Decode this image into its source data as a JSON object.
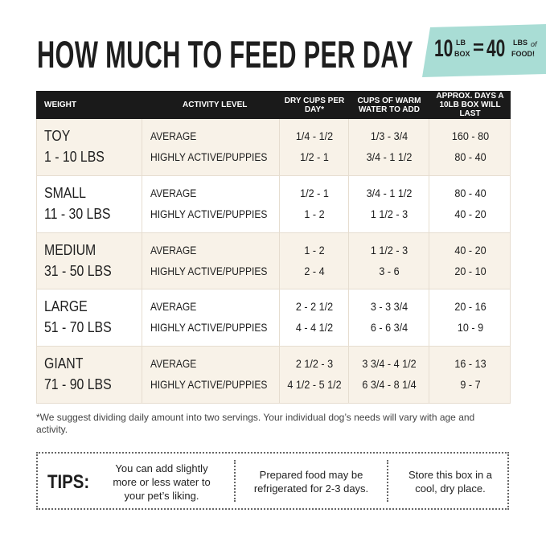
{
  "header": {
    "title": "HOW MUCH TO FEED PER DAY",
    "badge": {
      "left_number": "10",
      "left_unit": "LB",
      "left_item": "BOX",
      "equals": "=",
      "right_number": "40",
      "right_unit": "LBS",
      "right_of": "of",
      "right_item": "FOOD!"
    }
  },
  "table": {
    "columns": [
      "WEIGHT",
      "ACTIVITY LEVEL",
      "DRY CUPS PER DAY*",
      "CUPS OF WARM WATER TO ADD",
      "APPROX. DAYS A 10LB BOX WILL LAST"
    ],
    "rows": [
      {
        "size": "TOY",
        "weight": "1 - 10 LBS",
        "levels": [
          "AVERAGE",
          "HIGHLY ACTIVE/PUPPIES"
        ],
        "dry": [
          "1/4 - 1/2",
          "1/2 - 1"
        ],
        "water": [
          "1/3 - 3/4",
          "3/4 - 1 1/2"
        ],
        "days": [
          "160 - 80",
          "80 - 40"
        ]
      },
      {
        "size": "SMALL",
        "weight": "11 - 30 LBS",
        "levels": [
          "AVERAGE",
          "HIGHLY ACTIVE/PUPPIES"
        ],
        "dry": [
          "1/2 - 1",
          "1 - 2"
        ],
        "water": [
          "3/4 - 1 1/2",
          "1 1/2 - 3"
        ],
        "days": [
          "80 - 40",
          "40 - 20"
        ]
      },
      {
        "size": "MEDIUM",
        "weight": "31 - 50 LBS",
        "levels": [
          "AVERAGE",
          "HIGHLY ACTIVE/PUPPIES"
        ],
        "dry": [
          "1 - 2",
          "2 - 4"
        ],
        "water": [
          "1 1/2 - 3",
          "3 - 6"
        ],
        "days": [
          "40 - 20",
          "20 - 10"
        ]
      },
      {
        "size": "LARGE",
        "weight": "51 - 70 LBS",
        "levels": [
          "AVERAGE",
          "HIGHLY ACTIVE/PUPPIES"
        ],
        "dry": [
          "2 - 2 1/2",
          "4 - 4 1/2"
        ],
        "water": [
          "3 - 3 3/4",
          "6 - 6 3/4"
        ],
        "days": [
          "20 - 16",
          "10 - 9"
        ]
      },
      {
        "size": "GIANT",
        "weight": "71 - 90 LBS",
        "levels": [
          "AVERAGE",
          "HIGHLY ACTIVE/PUPPIES"
        ],
        "dry": [
          "2 1/2 - 3",
          "4 1/2 - 5 1/2"
        ],
        "water": [
          "3 3/4 - 4 1/2",
          "6 3/4 - 8 1/4"
        ],
        "days": [
          "16 - 13",
          "9 - 7"
        ]
      }
    ]
  },
  "footnote": "*We suggest dividing daily amount into two servings. Your individual dog’s needs will vary with age and activity.",
  "tips": {
    "label": "TIPS:",
    "items": [
      "You can add slightly more or less water to your pet’s liking.",
      "Prepared food may be refrigerated for 2-3 days.",
      "Store this box in a cool, dry place."
    ]
  }
}
